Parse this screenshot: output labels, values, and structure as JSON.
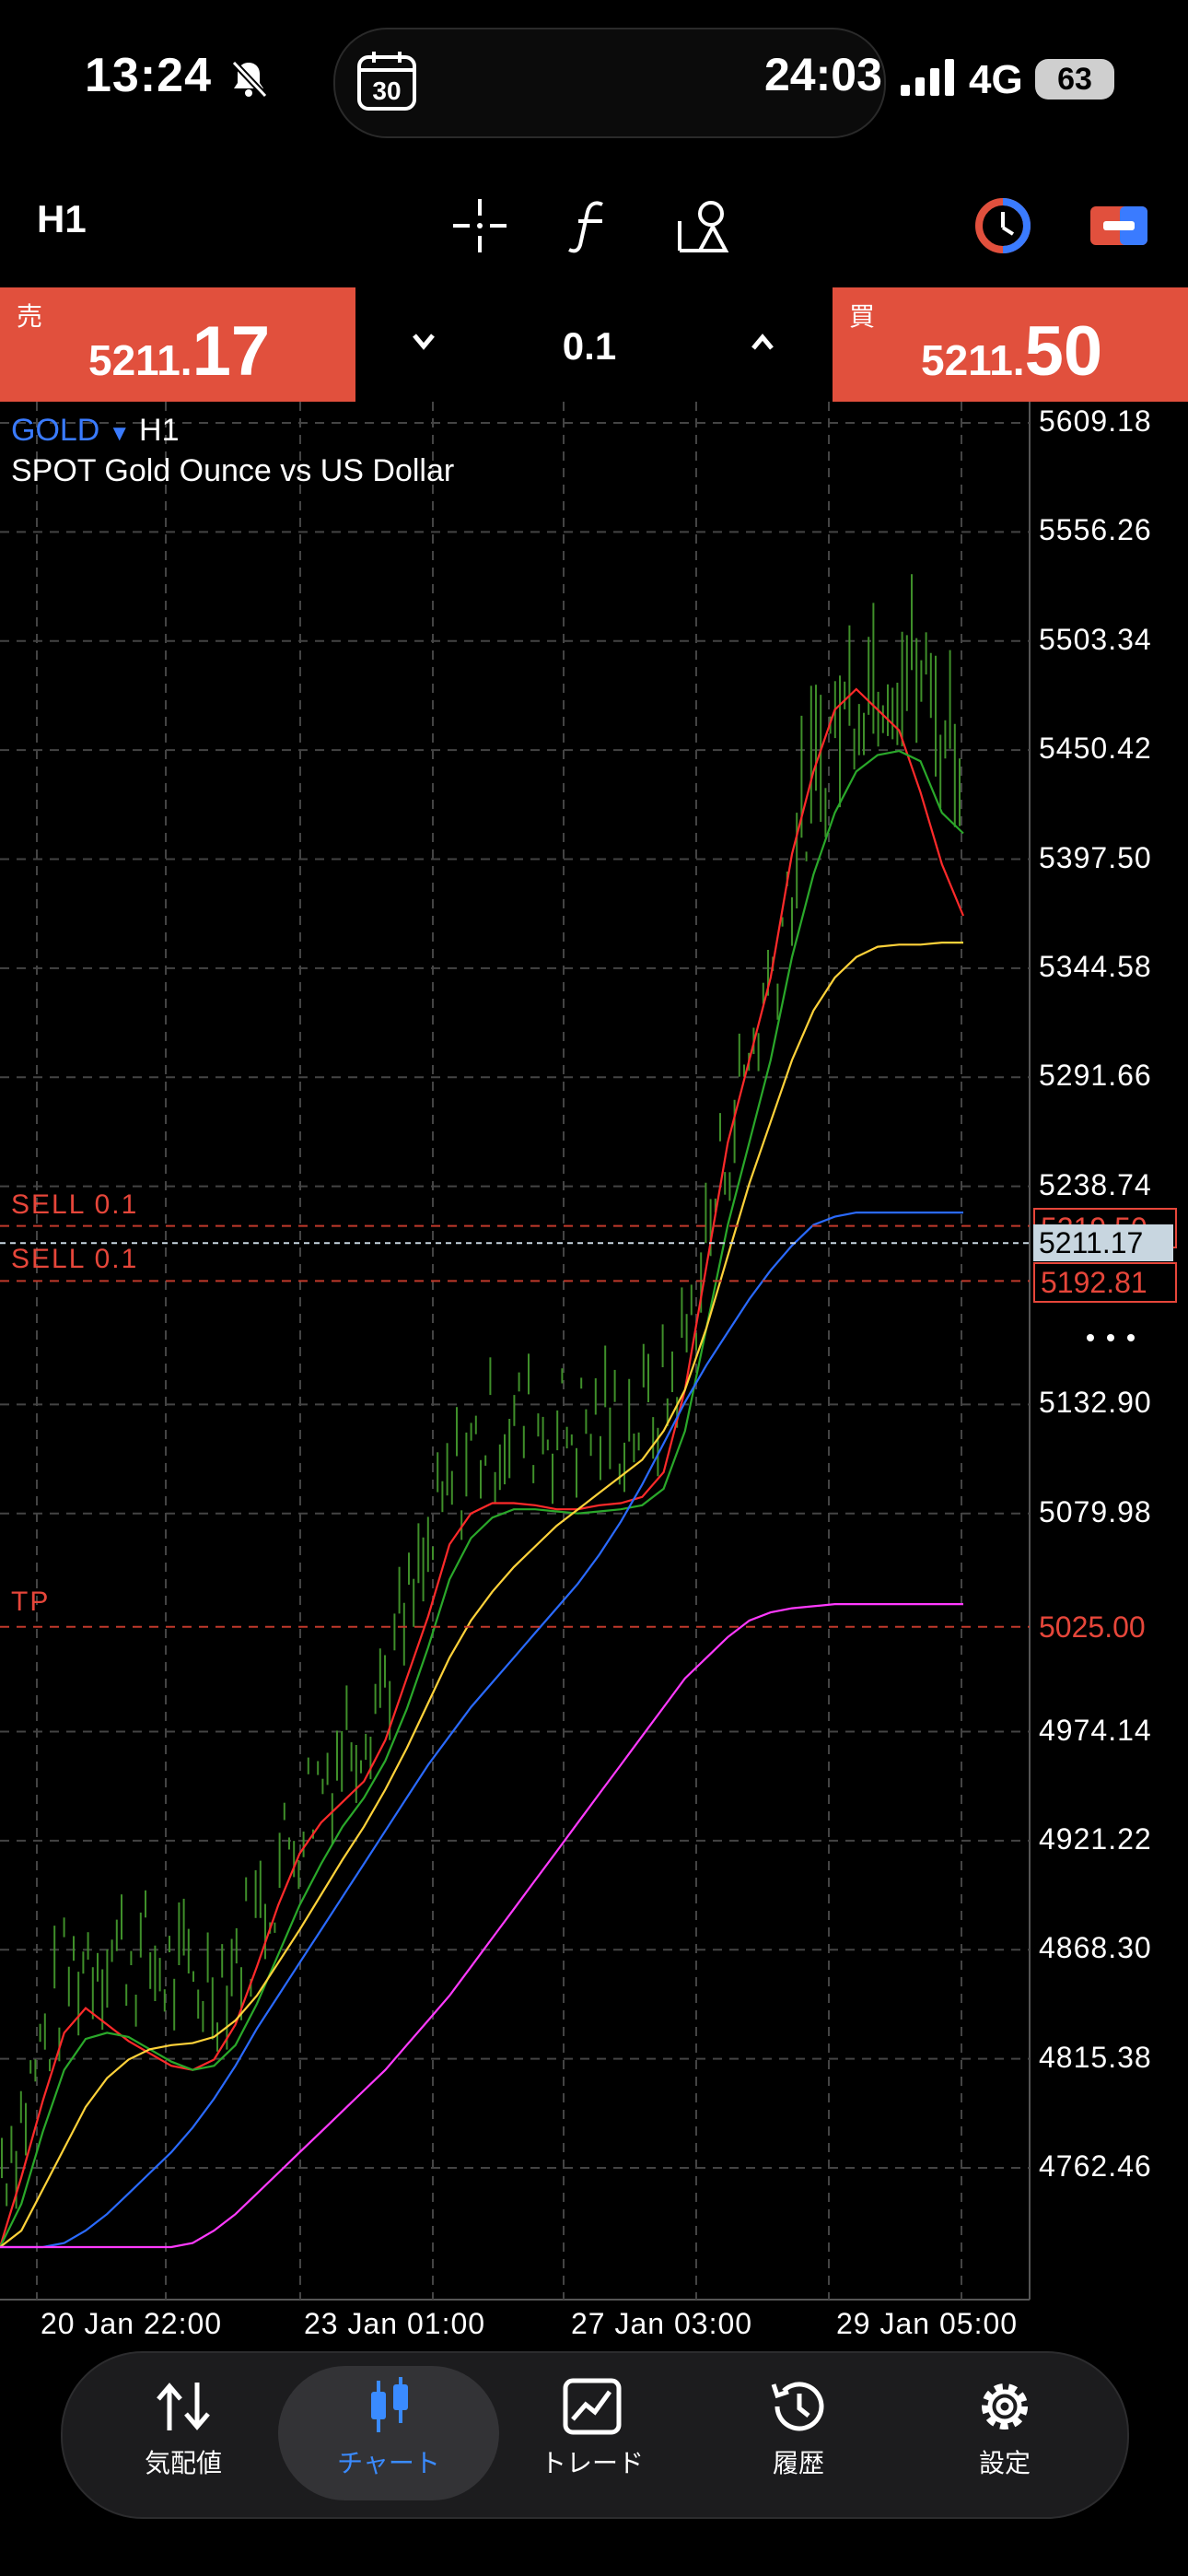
{
  "status_bar": {
    "time": "13:24",
    "timer": "24:03",
    "calendar_day": "30",
    "network": "4G",
    "battery": "63"
  },
  "toolbar": {
    "timeframe": "H1"
  },
  "trade_bar": {
    "sell_label": "売",
    "sell_price_small": "5211.",
    "sell_price_big": "17",
    "buy_label": "買",
    "buy_price_small": "5211.",
    "buy_price_big": "50",
    "lot": "0.1"
  },
  "chart_header": {
    "symbol": "GOLD",
    "dropdown": "▼",
    "timeframe": "H1",
    "description": "SPOT Gold Ounce vs US Dollar"
  },
  "chart_data": {
    "type": "line",
    "y_ticks": [
      "5609.18",
      "5556.26",
      "5503.34",
      "5450.42",
      "5397.50",
      "5344.58",
      "5291.66",
      "5238.74",
      "5132.90",
      "5079.98",
      "4974.14",
      "4921.22",
      "4868.30",
      "4815.38",
      "4762.46"
    ],
    "x_ticks": [
      "20 Jan 22:00",
      "23 Jan 01:00",
      "27 Jan 03:00",
      "29 Jan 05:00"
    ],
    "ylim": [
      4724,
      5632
    ],
    "current_price": "5211.17",
    "order_lines": [
      {
        "label": "SELL 0.1",
        "price": "5219.50"
      },
      {
        "label": "SELL 0.1",
        "price": "5192.81"
      },
      {
        "label": "TP",
        "price": "5025.00"
      }
    ],
    "series": [
      {
        "color": "#ff2a2a",
        "values": [
          4724,
          4758,
          4795,
          4828,
          4840,
          4832,
          4824,
          4818,
          4812,
          4810,
          4815,
          4832,
          4860,
          4890,
          4915,
          4930,
          4940,
          4950,
          4970,
          5000,
          5030,
          5065,
          5080,
          5085,
          5085,
          5084,
          5082,
          5082,
          5084,
          5085,
          5088,
          5100,
          5140,
          5200,
          5260,
          5300,
          5340,
          5400,
          5440,
          5470,
          5480,
          5470,
          5460,
          5430,
          5395,
          5370
        ]
      },
      {
        "color": "#2aa82a",
        "values": [
          4724,
          4745,
          4780,
          4810,
          4825,
          4828,
          4826,
          4820,
          4814,
          4810,
          4812,
          4822,
          4842,
          4866,
          4890,
          4910,
          4928,
          4942,
          4960,
          4985,
          5015,
          5048,
          5068,
          5078,
          5082,
          5082,
          5081,
          5080,
          5081,
          5082,
          5084,
          5092,
          5120,
          5170,
          5220,
          5260,
          5300,
          5350,
          5390,
          5420,
          5440,
          5448,
          5450,
          5445,
          5420,
          5410
        ]
      },
      {
        "color": "#ffd23a",
        "values": [
          4724,
          4732,
          4752,
          4772,
          4792,
          4806,
          4815,
          4820,
          4822,
          4823,
          4826,
          4834,
          4846,
          4862,
          4878,
          4895,
          4912,
          4928,
          4946,
          4966,
          4988,
          5010,
          5028,
          5042,
          5054,
          5064,
          5074,
          5082,
          5090,
          5098,
          5106,
          5120,
          5140,
          5170,
          5205,
          5240,
          5270,
          5300,
          5324,
          5340,
          5350,
          5355,
          5356,
          5356,
          5357,
          5357
        ]
      },
      {
        "color": "#2a6aff",
        "values": [
          4724,
          4724,
          4724,
          4726,
          4732,
          4740,
          4750,
          4760,
          4770,
          4782,
          4796,
          4812,
          4830,
          4846,
          4862,
          4878,
          4894,
          4910,
          4926,
          4942,
          4958,
          4972,
          4986,
          4998,
          5010,
          5022,
          5034,
          5046,
          5060,
          5076,
          5094,
          5114,
          5134,
          5152,
          5168,
          5184,
          5198,
          5210,
          5220,
          5224,
          5226,
          5226,
          5226,
          5226,
          5226,
          5226
        ]
      },
      {
        "color": "#ff3aff",
        "values": [
          4724,
          4724,
          4724,
          4724,
          4724,
          4724,
          4724,
          4724,
          4724,
          4726,
          4732,
          4740,
          4750,
          4760,
          4770,
          4780,
          4790,
          4800,
          4810,
          4822,
          4834,
          4846,
          4860,
          4874,
          4888,
          4902,
          4916,
          4930,
          4944,
          4958,
          4972,
          4986,
          5000,
          5010,
          5020,
          5028,
          5032,
          5034,
          5035,
          5036,
          5036,
          5036,
          5036,
          5036,
          5036,
          5036
        ]
      }
    ]
  },
  "tabs": [
    {
      "label": "気配値",
      "icon": "quotes-icon",
      "active": false
    },
    {
      "label": "チャート",
      "icon": "chart-icon",
      "active": true
    },
    {
      "label": "トレード",
      "icon": "trade-icon",
      "active": false
    },
    {
      "label": "履歴",
      "icon": "history-icon",
      "active": false
    },
    {
      "label": "設定",
      "icon": "settings-icon",
      "active": false
    }
  ]
}
